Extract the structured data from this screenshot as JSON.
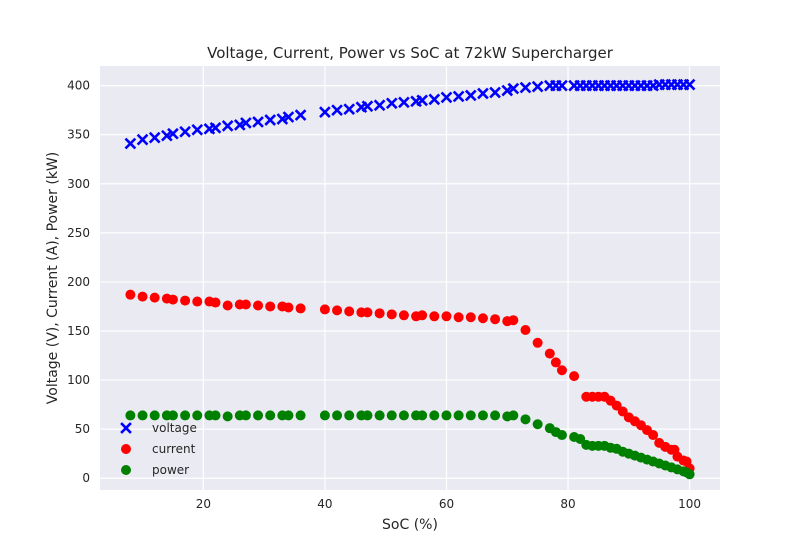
{
  "chart_data": {
    "type": "scatter",
    "title": "Voltage, Current, Power vs SoC at 72kW Supercharger",
    "xlabel": "SoC (%)",
    "ylabel": "Voltage (V), Current (A), Power (kW)",
    "xlim": [
      3,
      105
    ],
    "ylim": [
      -12,
      420
    ],
    "xticks": [
      20,
      40,
      60,
      80,
      100
    ],
    "yticks": [
      0,
      50,
      100,
      150,
      200,
      250,
      300,
      350,
      400
    ],
    "grid": true,
    "legend_position": "lower-left",
    "series": [
      {
        "name": "voltage",
        "marker": "x",
        "color": "#0000ff",
        "points": [
          [
            8,
            341
          ],
          [
            10,
            345
          ],
          [
            12,
            347
          ],
          [
            14,
            349
          ],
          [
            15,
            351
          ],
          [
            17,
            353
          ],
          [
            19,
            355
          ],
          [
            21,
            356
          ],
          [
            22,
            357
          ],
          [
            24,
            359
          ],
          [
            26,
            360
          ],
          [
            27,
            362
          ],
          [
            29,
            363
          ],
          [
            31,
            365
          ],
          [
            33,
            366
          ],
          [
            34,
            368
          ],
          [
            36,
            370
          ],
          [
            40,
            373
          ],
          [
            42,
            375
          ],
          [
            44,
            376
          ],
          [
            46,
            378
          ],
          [
            47,
            379
          ],
          [
            49,
            380
          ],
          [
            51,
            382
          ],
          [
            53,
            383
          ],
          [
            55,
            384
          ],
          [
            56,
            385
          ],
          [
            58,
            386
          ],
          [
            60,
            388
          ],
          [
            62,
            389
          ],
          [
            64,
            390
          ],
          [
            66,
            392
          ],
          [
            68,
            393
          ],
          [
            70,
            395
          ],
          [
            71,
            397
          ],
          [
            73,
            398
          ],
          [
            75,
            399
          ],
          [
            77,
            400
          ],
          [
            78,
            400
          ],
          [
            79,
            400
          ],
          [
            81,
            400
          ],
          [
            82,
            400
          ],
          [
            83,
            400
          ],
          [
            84,
            400
          ],
          [
            85,
            400
          ],
          [
            86,
            400
          ],
          [
            87,
            400
          ],
          [
            88,
            400
          ],
          [
            89,
            400
          ],
          [
            90,
            400
          ],
          [
            91,
            400
          ],
          [
            92,
            400
          ],
          [
            93,
            400
          ],
          [
            94,
            400
          ],
          [
            95,
            401
          ],
          [
            96,
            401
          ],
          [
            97,
            401
          ],
          [
            98,
            401
          ],
          [
            99,
            401
          ],
          [
            100,
            401
          ]
        ]
      },
      {
        "name": "current",
        "marker": "o",
        "color": "#ff0000",
        "points": [
          [
            8,
            187
          ],
          [
            10,
            185
          ],
          [
            12,
            184
          ],
          [
            14,
            183
          ],
          [
            15,
            182
          ],
          [
            17,
            181
          ],
          [
            19,
            180
          ],
          [
            21,
            180
          ],
          [
            22,
            179
          ],
          [
            24,
            176
          ],
          [
            26,
            177
          ],
          [
            27,
            177
          ],
          [
            29,
            176
          ],
          [
            31,
            175
          ],
          [
            33,
            175
          ],
          [
            34,
            174
          ],
          [
            36,
            173
          ],
          [
            40,
            172
          ],
          [
            42,
            171
          ],
          [
            44,
            170
          ],
          [
            46,
            169
          ],
          [
            47,
            169
          ],
          [
            49,
            168
          ],
          [
            51,
            167
          ],
          [
            53,
            166
          ],
          [
            55,
            165
          ],
          [
            56,
            166
          ],
          [
            58,
            165
          ],
          [
            60,
            165
          ],
          [
            62,
            164
          ],
          [
            64,
            164
          ],
          [
            66,
            163
          ],
          [
            68,
            162
          ],
          [
            70,
            160
          ],
          [
            71,
            161
          ],
          [
            73,
            151
          ],
          [
            75,
            138
          ],
          [
            77,
            127
          ],
          [
            78,
            118
          ],
          [
            79,
            110
          ],
          [
            81,
            104
          ],
          [
            83,
            83
          ],
          [
            84,
            83
          ],
          [
            85,
            83
          ],
          [
            86,
            83
          ],
          [
            87,
            79
          ],
          [
            88,
            74
          ],
          [
            89,
            68
          ],
          [
            90,
            62
          ],
          [
            91,
            58
          ],
          [
            92,
            54
          ],
          [
            93,
            49
          ],
          [
            94,
            44
          ],
          [
            95,
            36
          ],
          [
            96,
            32
          ],
          [
            97,
            29
          ],
          [
            97.5,
            29
          ],
          [
            98,
            22
          ],
          [
            99,
            18
          ],
          [
            99.5,
            17
          ],
          [
            100,
            10
          ]
        ]
      },
      {
        "name": "power",
        "marker": "o",
        "color": "#008000",
        "points": [
          [
            8,
            64
          ],
          [
            10,
            64
          ],
          [
            12,
            64
          ],
          [
            14,
            64
          ],
          [
            15,
            64
          ],
          [
            17,
            64
          ],
          [
            19,
            64
          ],
          [
            21,
            64
          ],
          [
            22,
            64
          ],
          [
            24,
            63
          ],
          [
            26,
            64
          ],
          [
            27,
            64
          ],
          [
            29,
            64
          ],
          [
            31,
            64
          ],
          [
            33,
            64
          ],
          [
            34,
            64
          ],
          [
            36,
            64
          ],
          [
            40,
            64
          ],
          [
            42,
            64
          ],
          [
            44,
            64
          ],
          [
            46,
            64
          ],
          [
            47,
            64
          ],
          [
            49,
            64
          ],
          [
            51,
            64
          ],
          [
            53,
            64
          ],
          [
            55,
            64
          ],
          [
            56,
            64
          ],
          [
            58,
            64
          ],
          [
            60,
            64
          ],
          [
            62,
            64
          ],
          [
            64,
            64
          ],
          [
            66,
            64
          ],
          [
            68,
            64
          ],
          [
            70,
            63
          ],
          [
            71,
            64
          ],
          [
            73,
            60
          ],
          [
            75,
            55
          ],
          [
            77,
            51
          ],
          [
            78,
            47
          ],
          [
            79,
            44
          ],
          [
            81,
            42
          ],
          [
            82,
            40
          ],
          [
            83,
            34
          ],
          [
            84,
            33
          ],
          [
            85,
            33
          ],
          [
            86,
            33
          ],
          [
            87,
            31
          ],
          [
            88,
            30
          ],
          [
            89,
            27
          ],
          [
            90,
            25
          ],
          [
            91,
            23
          ],
          [
            92,
            21
          ],
          [
            93,
            19
          ],
          [
            94,
            17
          ],
          [
            95,
            15
          ],
          [
            96,
            13
          ],
          [
            97,
            11
          ],
          [
            98,
            9
          ],
          [
            99,
            7
          ],
          [
            99.5,
            6
          ],
          [
            100,
            4
          ]
        ]
      }
    ]
  }
}
